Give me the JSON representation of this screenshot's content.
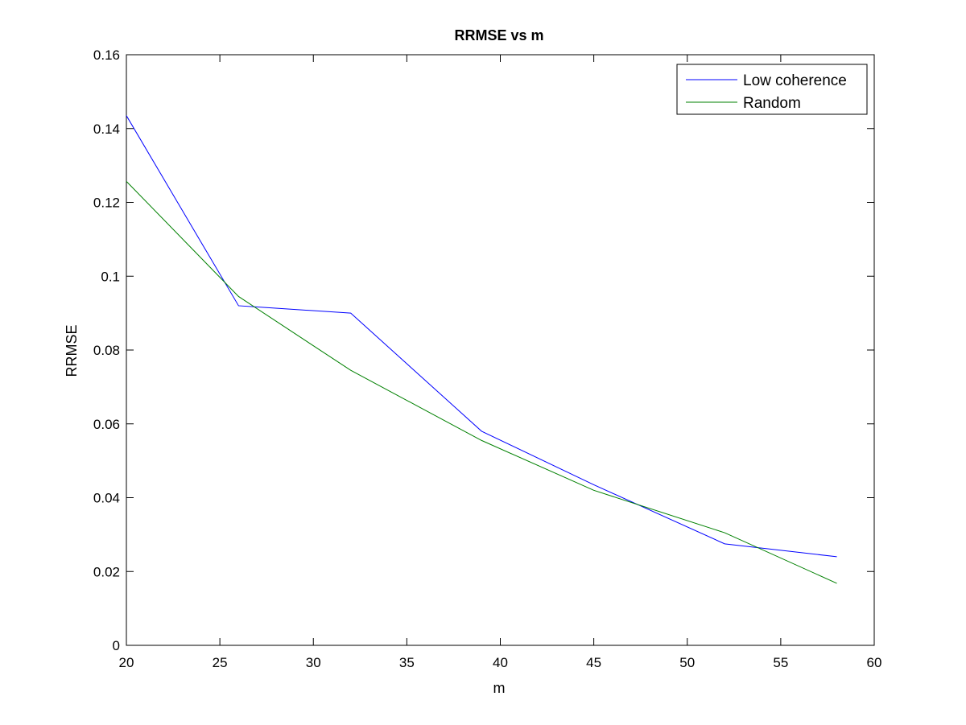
{
  "chart_data": {
    "type": "line",
    "title": "RRMSE vs m",
    "xlabel": "m",
    "ylabel": "RRMSE",
    "xlim": [
      20,
      60
    ],
    "ylim": [
      0,
      0.16
    ],
    "xticks": [
      20,
      25,
      30,
      35,
      40,
      45,
      50,
      55,
      60
    ],
    "yticks": [
      0,
      0.02,
      0.04,
      0.06,
      0.08,
      0.1,
      0.12,
      0.14,
      0.16
    ],
    "xtick_labels": [
      "20",
      "25",
      "30",
      "35",
      "40",
      "45",
      "50",
      "55",
      "60"
    ],
    "ytick_labels": [
      "0",
      "0.02",
      "0.04",
      "0.06",
      "0.08",
      "0.1",
      "0.12",
      "0.14",
      "0.16"
    ],
    "grid": false,
    "legend_position": "top-right",
    "series": [
      {
        "name": "Low coherence",
        "color": "#0000ff",
        "x": [
          20,
          26,
          32,
          39,
          45,
          52,
          58
        ],
        "y": [
          0.1435,
          0.092,
          0.09,
          0.058,
          0.0435,
          0.0275,
          0.024
        ]
      },
      {
        "name": "Random",
        "color": "#008000",
        "x": [
          20,
          26,
          32,
          39,
          45,
          52,
          58
        ],
        "y": [
          0.1257,
          0.0945,
          0.0745,
          0.0555,
          0.042,
          0.0305,
          0.0168
        ]
      }
    ]
  }
}
